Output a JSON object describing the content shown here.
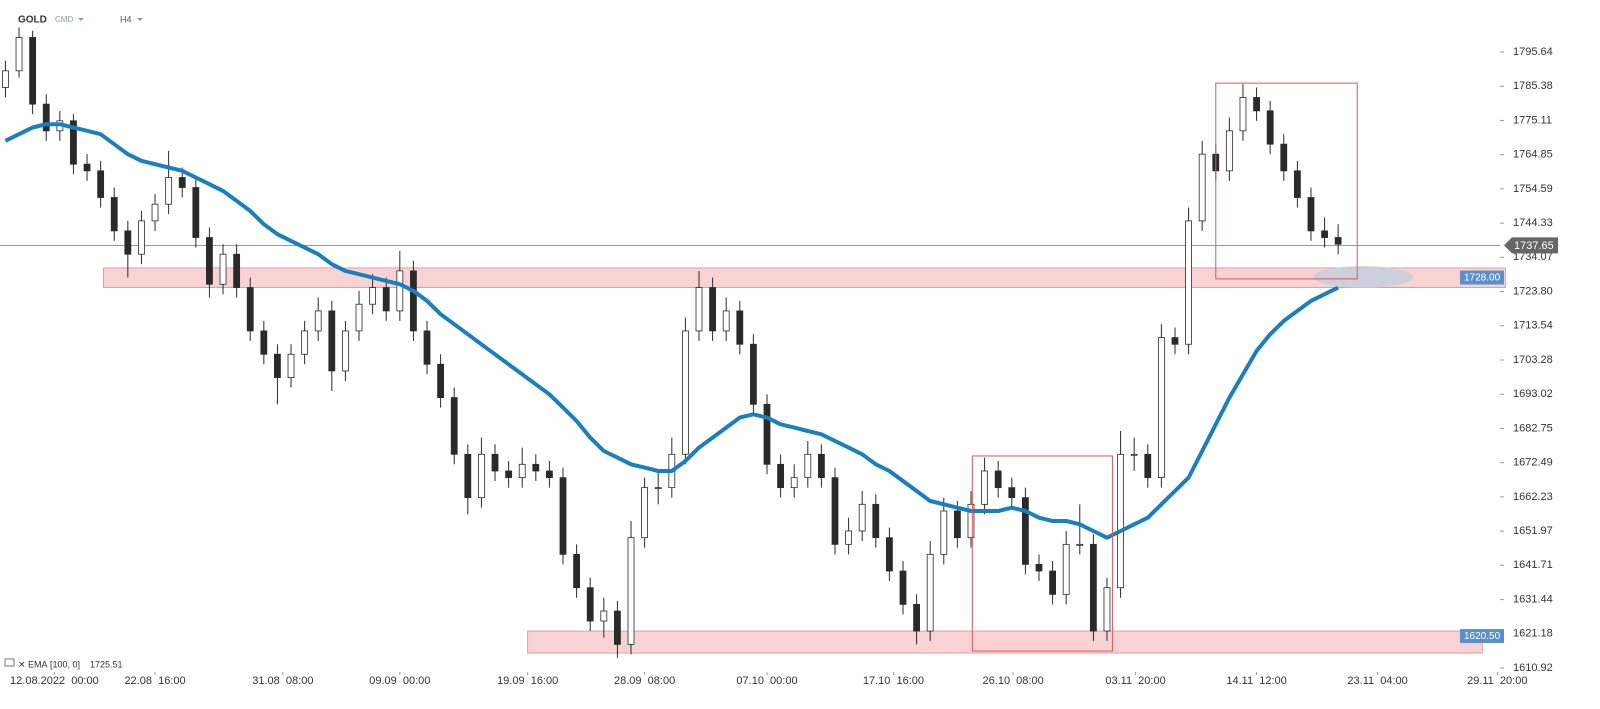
{
  "chart_data": {
    "type": "candlestick",
    "symbol": "GOLD",
    "market": "CMD",
    "timeframe": "H4",
    "indicator": {
      "name": "EMA",
      "params": "[100, 0]",
      "last": 1725.51,
      "color": "#1a7fc1"
    },
    "current_price": 1737.65,
    "xlim": [
      -0.4,
      109.9
    ],
    "ylim": [
      1609.72,
      1811.23
    ],
    "xticks": [
      {
        "value": 3.6,
        "label": "12.08.2022  00:00"
      },
      {
        "value": 11.0,
        "label": "22.08  16:00"
      },
      {
        "value": 20.4,
        "label": "31.08  08:00"
      },
      {
        "value": 29.0,
        "label": "09.09  00:00"
      },
      {
        "value": 38.4,
        "label": "19.09  16:00"
      },
      {
        "value": 47.0,
        "label": "28.09  08:00"
      },
      {
        "value": 56.0,
        "label": "07.10  00:00"
      },
      {
        "value": 65.3,
        "label": "17.10  16:00"
      },
      {
        "value": 74.1,
        "label": "26.10  08:00"
      },
      {
        "value": 83.1,
        "label": "03.11  20:00"
      },
      {
        "value": 92.0,
        "label": "14.11  12:00"
      },
      {
        "value": 100.9,
        "label": "23.11  04:00"
      },
      {
        "value": 109.7,
        "label": "29.11  20:00"
      }
    ],
    "yticks": [
      1795.64,
      1785.38,
      1775.11,
      1764.85,
      1754.59,
      1744.33,
      1734.07,
      {
        "value": 1723.8,
        "label": "1723.80"
      },
      1713.54,
      1703.28,
      1693.02,
      1682.75,
      1672.49,
      1662.23,
      1651.97,
      1641.71,
      1631.44,
      1621.18,
      1610.92
    ],
    "zones": [
      {
        "level": {
          "value": 1728,
          "label": "1728.00"
        },
        "from": 7.2,
        "to": 110.3,
        "top": 1730.9,
        "bottom": 1725.0
      },
      {
        "level": {
          "value": 1620.5,
          "label": "1620.50"
        },
        "from": 38.4,
        "to": 108.6,
        "top": 1622.0,
        "bottom": 1615.4
      }
    ],
    "boxes": [
      {
        "from": 89.0,
        "to": 99.4,
        "top": 1786.3,
        "bottom": 1727.6
      },
      {
        "from": 71.1,
        "to": 81.4,
        "top": 1674.5,
        "bottom": 1616.0
      }
    ],
    "candles": [
      [
        1785,
        1793,
        1782,
        1790
      ],
      [
        1790,
        1803,
        1788,
        1800
      ],
      [
        1800,
        1802,
        1777,
        1780
      ],
      [
        1780,
        1783,
        1769,
        1772
      ],
      [
        1772,
        1778,
        1769,
        1775
      ],
      [
        1775,
        1777,
        1759,
        1762
      ],
      [
        1762,
        1765,
        1757,
        1760
      ],
      [
        1760,
        1763,
        1749,
        1752
      ],
      [
        1752,
        1755,
        1739,
        1742
      ],
      [
        1742,
        1745,
        1728,
        1735
      ],
      [
        1735,
        1748,
        1732,
        1745
      ],
      [
        1745,
        1753,
        1742,
        1750
      ],
      [
        1750,
        1766,
        1747,
        1758
      ],
      [
        1758,
        1761,
        1752,
        1755
      ],
      [
        1755,
        1758,
        1737,
        1740
      ],
      [
        1740,
        1743,
        1722,
        1726
      ],
      [
        1726,
        1738,
        1723,
        1735
      ],
      [
        1735,
        1738,
        1722,
        1725
      ],
      [
        1725,
        1728,
        1709,
        1712
      ],
      [
        1712,
        1715,
        1702,
        1705
      ],
      [
        1705,
        1708,
        1690,
        1698
      ],
      [
        1698,
        1708,
        1695,
        1705
      ],
      [
        1705,
        1715,
        1702,
        1712
      ],
      [
        1712,
        1722,
        1709,
        1718
      ],
      [
        1718,
        1721,
        1694,
        1700
      ],
      [
        1700,
        1715,
        1697,
        1712
      ],
      [
        1712,
        1724,
        1709,
        1720
      ],
      [
        1720,
        1729,
        1717,
        1725
      ],
      [
        1725,
        1728,
        1715,
        1718
      ],
      [
        1718,
        1736,
        1715,
        1730
      ],
      [
        1730,
        1733,
        1709,
        1712
      ],
      [
        1712,
        1715,
        1699,
        1702
      ],
      [
        1702,
        1705,
        1689,
        1692
      ],
      [
        1692,
        1695,
        1672,
        1675
      ],
      [
        1675,
        1678,
        1657,
        1662
      ],
      [
        1662,
        1680,
        1659,
        1675
      ],
      [
        1675,
        1678,
        1667,
        1670
      ],
      [
        1670,
        1673,
        1665,
        1668
      ],
      [
        1668,
        1677,
        1665,
        1672
      ],
      [
        1672,
        1675,
        1667,
        1670
      ],
      [
        1670,
        1673,
        1665,
        1668
      ],
      [
        1668,
        1671,
        1642,
        1645
      ],
      [
        1645,
        1648,
        1632,
        1635
      ],
      [
        1635,
        1638,
        1622,
        1625
      ],
      [
        1625,
        1632,
        1620,
        1628
      ],
      [
        1628,
        1631,
        1614,
        1618
      ],
      [
        1618,
        1655,
        1615,
        1650
      ],
      [
        1650,
        1668,
        1647,
        1665
      ],
      [
        1665,
        1670,
        1660,
        1665
      ],
      [
        1665,
        1680,
        1662,
        1675
      ],
      [
        1675,
        1716,
        1672,
        1712
      ],
      [
        1712,
        1730,
        1709,
        1725
      ],
      [
        1725,
        1728,
        1709,
        1712
      ],
      [
        1712,
        1722,
        1709,
        1718
      ],
      [
        1718,
        1721,
        1705,
        1708
      ],
      [
        1708,
        1711,
        1687,
        1690
      ],
      [
        1690,
        1693,
        1669,
        1672
      ],
      [
        1672,
        1675,
        1662,
        1665
      ],
      [
        1665,
        1672,
        1662,
        1668
      ],
      [
        1668,
        1679,
        1665,
        1675
      ],
      [
        1675,
        1678,
        1665,
        1668
      ],
      [
        1668,
        1671,
        1645,
        1648
      ],
      [
        1648,
        1656,
        1645,
        1652
      ],
      [
        1652,
        1664,
        1649,
        1660
      ],
      [
        1660,
        1663,
        1647,
        1650
      ],
      [
        1650,
        1653,
        1637,
        1640
      ],
      [
        1640,
        1643,
        1627,
        1630
      ],
      [
        1630,
        1633,
        1618,
        1622
      ],
      [
        1622,
        1649,
        1619,
        1645
      ],
      [
        1645,
        1662,
        1642,
        1658
      ],
      [
        1658,
        1661,
        1647,
        1650
      ],
      [
        1650,
        1664,
        1647,
        1660
      ],
      [
        1660,
        1674,
        1657,
        1670
      ],
      [
        1670,
        1673,
        1662,
        1665
      ],
      [
        1665,
        1668,
        1659,
        1662
      ],
      [
        1662,
        1665,
        1639,
        1642
      ],
      [
        1642,
        1645,
        1637,
        1640
      ],
      [
        1640,
        1643,
        1630,
        1633
      ],
      [
        1633,
        1652,
        1630,
        1648
      ],
      [
        1648,
        1660,
        1645,
        1648
      ],
      [
        1648,
        1651,
        1619,
        1622
      ],
      [
        1622,
        1638,
        1619,
        1635
      ],
      [
        1635,
        1682,
        1632,
        1675
      ],
      [
        1675,
        1680,
        1670,
        1675
      ],
      [
        1675,
        1678,
        1665,
        1668
      ],
      [
        1668,
        1714,
        1665,
        1710
      ],
      [
        1710,
        1713,
        1705,
        1708
      ],
      [
        1708,
        1749,
        1705,
        1745
      ],
      [
        1745,
        1769,
        1742,
        1765
      ],
      [
        1765,
        1768,
        1757,
        1760
      ],
      [
        1760,
        1776,
        1757,
        1772
      ],
      [
        1772,
        1786,
        1769,
        1782
      ],
      [
        1782,
        1785,
        1775,
        1778
      ],
      [
        1778,
        1781,
        1765,
        1768
      ],
      [
        1768,
        1771,
        1757,
        1760
      ],
      [
        1760,
        1763,
        1749,
        1752
      ],
      [
        1752,
        1755,
        1739,
        1742
      ],
      [
        1742,
        1746,
        1737,
        1740
      ],
      [
        1740,
        1744,
        1735,
        1738
      ]
    ],
    "ema": [
      1769,
      1771,
      1773,
      1774,
      1774,
      1773,
      1772,
      1771,
      1768,
      1765,
      1763,
      1762,
      1761,
      1760,
      1758,
      1756,
      1754,
      1751,
      1748,
      1744,
      1741,
      1739,
      1737,
      1735,
      1732,
      1730,
      1729,
      1728,
      1727,
      1726,
      1724,
      1721,
      1717,
      1714,
      1711,
      1708,
      1705,
      1702,
      1699,
      1696,
      1693,
      1689,
      1685,
      1680,
      1676,
      1674,
      1672,
      1671,
      1670,
      1670,
      1673,
      1677,
      1680,
      1683,
      1686,
      1687,
      1686,
      1684,
      1683,
      1682,
      1681,
      1679,
      1677,
      1675,
      1672,
      1670,
      1667,
      1664,
      1661,
      1660,
      1659,
      1658,
      1658,
      1658,
      1659,
      1658,
      1656,
      1655,
      1655,
      1654,
      1652,
      1650,
      1652,
      1654,
      1656,
      1660,
      1664,
      1668,
      1676,
      1684,
      1692,
      1699,
      1706,
      1711,
      1715,
      1718,
      1721,
      1723,
      1725
    ]
  }
}
